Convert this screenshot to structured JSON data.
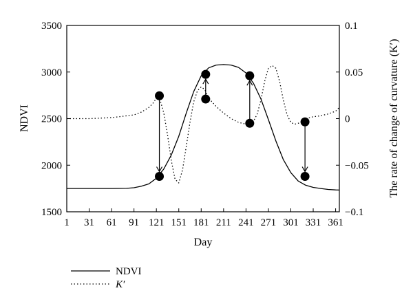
{
  "chart_data": {
    "type": "line",
    "xlabel": "Day",
    "ylabel": "NDVI",
    "y2label": "The rate of change of curvature (K′)",
    "x_ticks": [
      1,
      31,
      61,
      91,
      121,
      151,
      181,
      211,
      241,
      271,
      301,
      331,
      361
    ],
    "xlim": [
      1,
      366
    ],
    "y_ticks": [
      1500,
      2000,
      2500,
      3000,
      3500
    ],
    "ylim": [
      1500,
      3500
    ],
    "y2_ticks": [
      0.1,
      0.05,
      0,
      -0.05,
      -0.1
    ],
    "y2_tick_labels": [
      "0.1",
      "0.05",
      "0",
      "−0.05",
      "−0.1"
    ],
    "y2lim": [
      -0.1,
      0.1
    ],
    "grid": false,
    "legend_placement": "bottom-left",
    "series": [
      {
        "name": "NDVI",
        "axis": "left",
        "style": "solid",
        "x": [
          1,
          31,
          61,
          81,
          91,
          101,
          111,
          121,
          131,
          141,
          151,
          161,
          171,
          181,
          191,
          201,
          211,
          221,
          231,
          241,
          251,
          261,
          271,
          281,
          291,
          301,
          311,
          321,
          331,
          341,
          351,
          361,
          366
        ],
        "y": [
          1750,
          1750,
          1750,
          1752,
          1758,
          1775,
          1800,
          1860,
          1960,
          2110,
          2310,
          2560,
          2790,
          2960,
          3045,
          3075,
          3080,
          3075,
          3050,
          2990,
          2880,
          2710,
          2490,
          2260,
          2060,
          1920,
          1830,
          1785,
          1762,
          1750,
          1740,
          1735,
          1733
        ]
      },
      {
        "name": "K′",
        "axis": "right",
        "style": "dotted",
        "x": [
          1,
          31,
          61,
          91,
          101,
          111,
          116,
          121,
          126,
          131,
          136,
          141,
          146,
          151,
          156,
          161,
          166,
          171,
          176,
          181,
          186,
          191,
          201,
          211,
          221,
          231,
          241,
          251,
          256,
          261,
          266,
          271,
          276,
          281,
          286,
          291,
          296,
          301,
          306,
          311,
          316,
          321,
          331,
          341,
          351,
          361,
          366
        ],
        "y": [
          0,
          0,
          0.001,
          0.004,
          0.007,
          0.012,
          0.016,
          0.022,
          0.02,
          0.006,
          -0.018,
          -0.045,
          -0.065,
          -0.069,
          -0.055,
          -0.03,
          -0.004,
          0.018,
          0.03,
          0.034,
          0.031,
          0.022,
          0.013,
          0.006,
          0.0,
          -0.004,
          -0.006,
          -0.003,
          0.005,
          0.02,
          0.04,
          0.054,
          0.057,
          0.054,
          0.04,
          0.02,
          0.004,
          -0.004,
          -0.006,
          -0.005,
          -0.003,
          0.0,
          0.002,
          0.003,
          0.005,
          0.008,
          0.012
        ]
      }
    ],
    "markers": [
      {
        "x": 125,
        "y": 2745
      },
      {
        "x": 125,
        "y": 1880
      },
      {
        "x": 187,
        "y": 2975
      },
      {
        "x": 187,
        "y": 2710
      },
      {
        "x": 246,
        "y": 2960
      },
      {
        "x": 246,
        "y": 2450
      },
      {
        "x": 320,
        "y": 2465
      },
      {
        "x": 320,
        "y": 1880
      }
    ],
    "arrows": [
      {
        "x": 125,
        "from": 2745,
        "to": 1880
      },
      {
        "x": 187,
        "from": 2710,
        "to": 2975
      },
      {
        "x": 246,
        "from": 2450,
        "to": 2960
      },
      {
        "x": 320,
        "from": 2465,
        "to": 1880
      }
    ],
    "legend": [
      {
        "label": "NDVI",
        "style": "solid"
      },
      {
        "label": "K′",
        "style": "dotted"
      }
    ]
  }
}
